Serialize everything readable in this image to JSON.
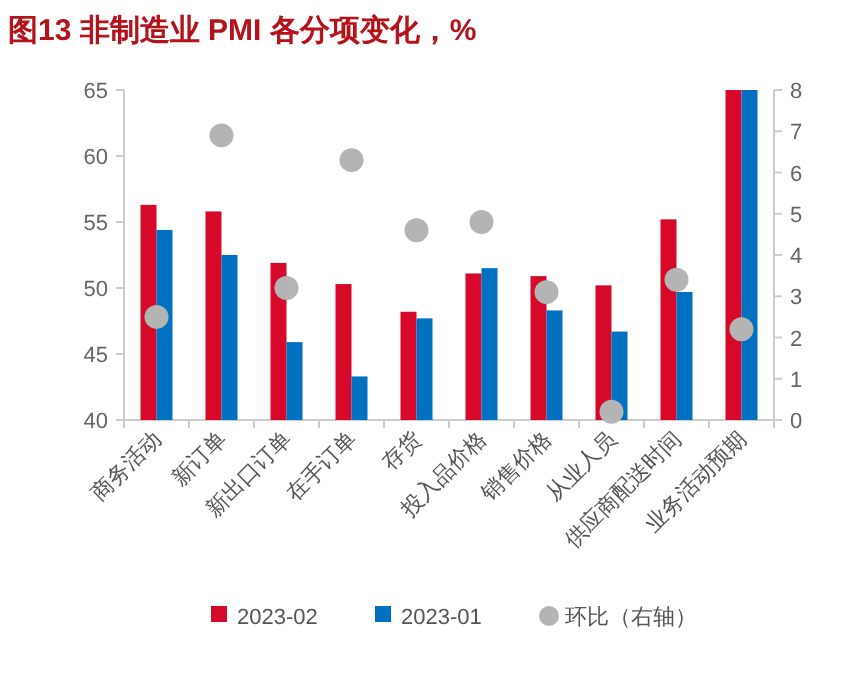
{
  "chart_data": {
    "type": "bar",
    "title": "图13  非制造业 PMI 各分项变化，%",
    "categories": [
      "商务活动",
      "新订单",
      "新出口订单",
      "在手订单",
      "存货",
      "投入品价格",
      "销售价格",
      "从业人员",
      "供应商配送时间",
      "业务活动预期"
    ],
    "series": [
      {
        "name": "2023-02",
        "color": "#d7092a",
        "values": [
          56.3,
          55.8,
          51.9,
          50.3,
          48.2,
          51.1,
          50.9,
          50.2,
          55.2,
          65
        ]
      },
      {
        "name": "2023-01",
        "color": "#0070c0",
        "values": [
          54.4,
          52.5,
          45.9,
          43.3,
          47.7,
          51.5,
          48.3,
          46.7,
          49.7,
          65
        ]
      },
      {
        "name": "环比（右轴）",
        "color": "#b4b4b4",
        "type": "scatter",
        "axis": "y2",
        "marker": "circle",
        "values": [
          2.5,
          6.9,
          3.2,
          6.3,
          4.6,
          4.8,
          3.1,
          0.2,
          3.4,
          2.2
        ]
      }
    ],
    "ylim": [
      40,
      65
    ],
    "yticks": [
      40,
      45,
      50,
      55,
      60,
      65
    ],
    "y2lim": [
      0,
      8
    ],
    "y2ticks": [
      0,
      1,
      2,
      3,
      4,
      5,
      6,
      7,
      8
    ],
    "legend": "bottom",
    "grid": false
  }
}
